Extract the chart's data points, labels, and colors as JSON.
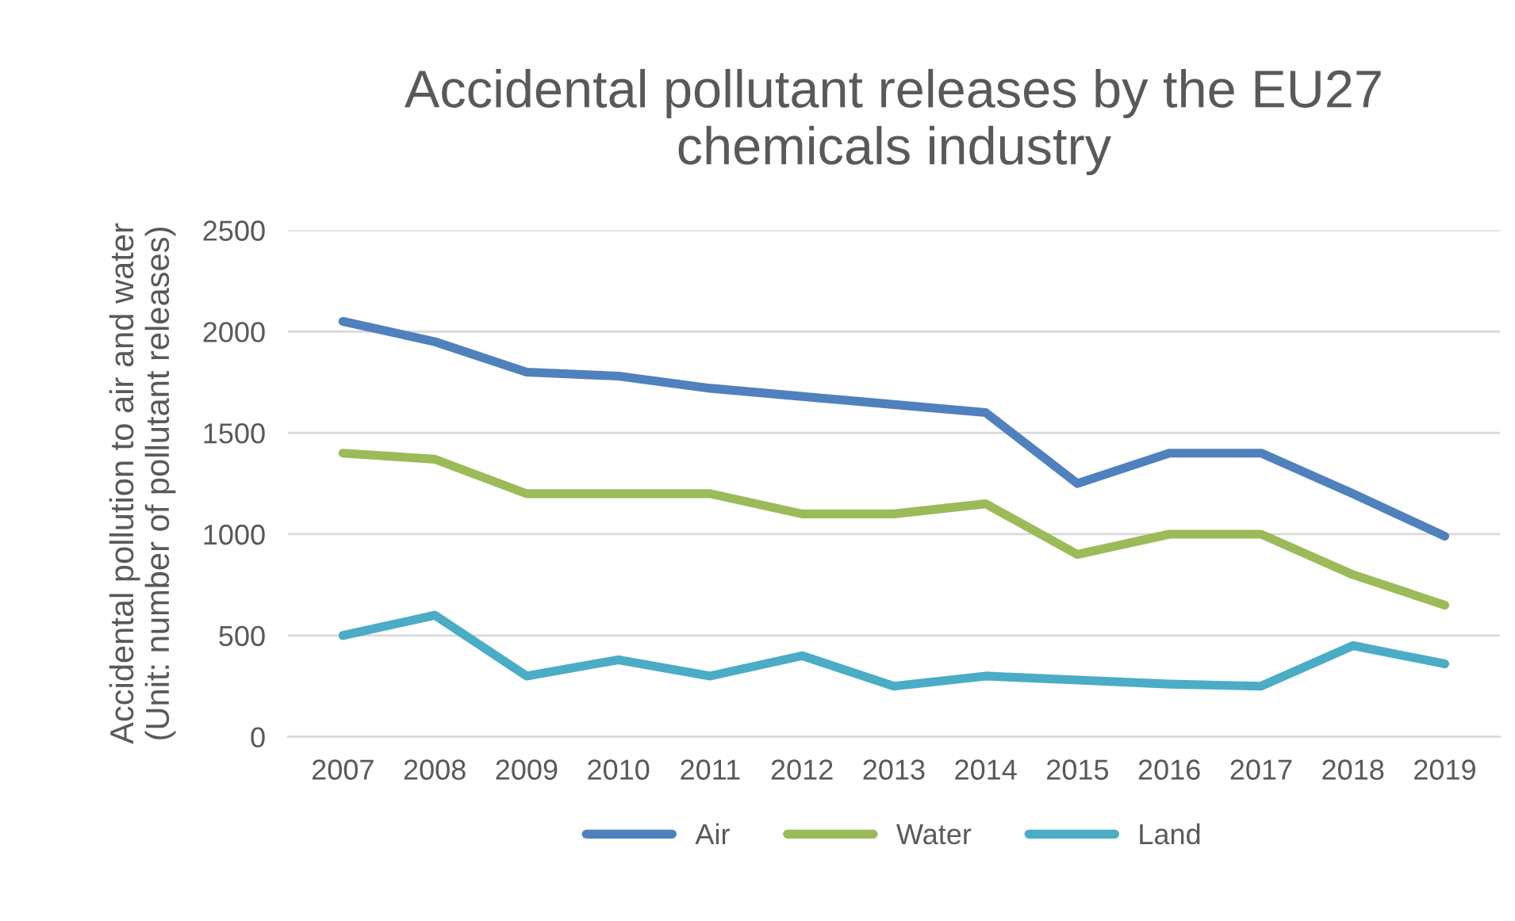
{
  "chart_data": {
    "type": "line",
    "title": "Accidental pollutant releases by the EU27\nchemicals industry",
    "ylabel": "Accidental pollution to air and water\n(Unit: number of pollutant releases)",
    "categories": [
      "2007",
      "2008",
      "2009",
      "2010",
      "2011",
      "2012",
      "2013",
      "2014",
      "2015",
      "2016",
      "2017",
      "2018",
      "2019"
    ],
    "series": [
      {
        "name": "Air",
        "color": "#4f81bd",
        "values": [
          2050,
          1950,
          1800,
          1780,
          1720,
          1680,
          1640,
          1600,
          1250,
          1400,
          1400,
          1200,
          990
        ]
      },
      {
        "name": "Water",
        "color": "#9bbb59",
        "values": [
          1400,
          1370,
          1200,
          1200,
          1200,
          1100,
          1100,
          1150,
          900,
          1000,
          1000,
          800,
          650
        ]
      },
      {
        "name": "Land",
        "color": "#4bacc6",
        "values": [
          500,
          600,
          300,
          380,
          300,
          400,
          250,
          300,
          280,
          260,
          250,
          450,
          360
        ]
      }
    ],
    "ylim": [
      0,
      2500
    ],
    "yticks": [
      0,
      500,
      1000,
      1500,
      2000,
      2500
    ],
    "grid": "y",
    "legend": "bottom",
    "marker": "none",
    "line_style": "solid"
  }
}
